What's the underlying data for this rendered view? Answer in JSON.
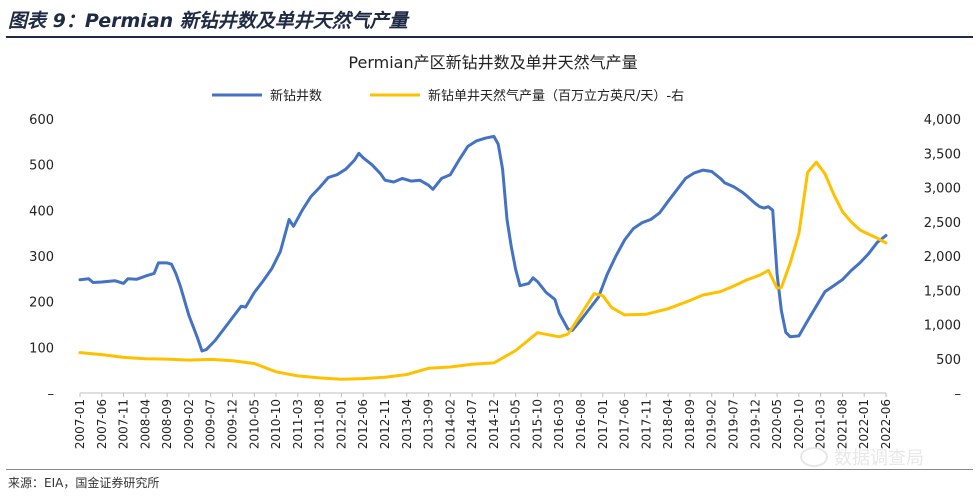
{
  "header": {
    "title": "图表 9：Permian 新钻井数及单井天然气产量"
  },
  "footer": {
    "source": "来源：EIA，国金证券研究所",
    "watermark": "数据调查局"
  },
  "chart_data": {
    "type": "line",
    "title": "Permian产区新钻井数及单井天然气产量",
    "legend_position": "top",
    "grid": false,
    "y_left": {
      "ylim": [
        0,
        600
      ],
      "ticks": [
        "–",
        "100",
        "200",
        "300",
        "400",
        "500",
        "600"
      ]
    },
    "y_right": {
      "ylim": [
        0,
        4000
      ],
      "ticks": [
        "–",
        "500",
        "1,000",
        "1,500",
        "2,000",
        "2,500",
        "3,000",
        "3,500",
        "4,000"
      ]
    },
    "x_ticks": [
      "2007-01",
      "2007-06",
      "2007-11",
      "2008-04",
      "2008-09",
      "2009-02",
      "2009-07",
      "2009-12",
      "2010-05",
      "2010-10",
      "2011-03",
      "2011-08",
      "2012-01",
      "2012-06",
      "2012-11",
      "2013-04",
      "2013-09",
      "2014-02",
      "2014-07",
      "2014-12",
      "2015-05",
      "2015-10",
      "2016-03",
      "2016-08",
      "2017-01",
      "2017-06",
      "2017-11",
      "2018-04",
      "2018-09",
      "2019-02",
      "2019-07",
      "2019-12",
      "2020-05",
      "2020-10",
      "2021-03",
      "2021-08",
      "2022-01",
      "2022-06"
    ],
    "x_range": [
      "2007-01",
      "2022-06"
    ],
    "series": [
      {
        "name": "新钻井数",
        "axis": "left",
        "color": "#4472c4",
        "points": [
          [
            "2007-01",
            248
          ],
          [
            "2007-03",
            250
          ],
          [
            "2007-04",
            242
          ],
          [
            "2007-06",
            243
          ],
          [
            "2007-09",
            246
          ],
          [
            "2007-11",
            240
          ],
          [
            "2007-12",
            250
          ],
          [
            "2008-02",
            249
          ],
          [
            "2008-04",
            256
          ],
          [
            "2008-06",
            262
          ],
          [
            "2008-07",
            285
          ],
          [
            "2008-09",
            285
          ],
          [
            "2008-10",
            282
          ],
          [
            "2008-11",
            262
          ],
          [
            "2008-12",
            235
          ],
          [
            "2009-02",
            170
          ],
          [
            "2009-04",
            120
          ],
          [
            "2009-05",
            92
          ],
          [
            "2009-06",
            95
          ],
          [
            "2009-08",
            115
          ],
          [
            "2009-10",
            140
          ],
          [
            "2009-12",
            165
          ],
          [
            "2010-02",
            190
          ],
          [
            "2010-03",
            188
          ],
          [
            "2010-05",
            220
          ],
          [
            "2010-07",
            245
          ],
          [
            "2010-09",
            272
          ],
          [
            "2010-11",
            310
          ],
          [
            "2011-01",
            380
          ],
          [
            "2011-02",
            365
          ],
          [
            "2011-04",
            400
          ],
          [
            "2011-06",
            430
          ],
          [
            "2011-08",
            450
          ],
          [
            "2011-10",
            472
          ],
          [
            "2011-12",
            478
          ],
          [
            "2012-02",
            490
          ],
          [
            "2012-04",
            510
          ],
          [
            "2012-05",
            525
          ],
          [
            "2012-06",
            515
          ],
          [
            "2012-08",
            500
          ],
          [
            "2012-10",
            480
          ],
          [
            "2012-11",
            466
          ],
          [
            "2013-01",
            462
          ],
          [
            "2013-03",
            470
          ],
          [
            "2013-05",
            464
          ],
          [
            "2013-07",
            466
          ],
          [
            "2013-09",
            455
          ],
          [
            "2013-10",
            446
          ],
          [
            "2013-12",
            470
          ],
          [
            "2014-02",
            478
          ],
          [
            "2014-04",
            510
          ],
          [
            "2014-06",
            540
          ],
          [
            "2014-08",
            552
          ],
          [
            "2014-10",
            558
          ],
          [
            "2014-12",
            562
          ],
          [
            "2015-01",
            545
          ],
          [
            "2015-02",
            490
          ],
          [
            "2015-03",
            380
          ],
          [
            "2015-04",
            320
          ],
          [
            "2015-05",
            270
          ],
          [
            "2015-06",
            235
          ],
          [
            "2015-08",
            240
          ],
          [
            "2015-09",
            252
          ],
          [
            "2015-10",
            244
          ],
          [
            "2015-12",
            220
          ],
          [
            "2016-02",
            205
          ],
          [
            "2016-03",
            175
          ],
          [
            "2016-05",
            140
          ],
          [
            "2016-06",
            137
          ],
          [
            "2016-08",
            160
          ],
          [
            "2016-10",
            185
          ],
          [
            "2016-12",
            210
          ],
          [
            "2017-02",
            260
          ],
          [
            "2017-04",
            300
          ],
          [
            "2017-06",
            335
          ],
          [
            "2017-08",
            360
          ],
          [
            "2017-10",
            373
          ],
          [
            "2017-12",
            380
          ],
          [
            "2018-02",
            394
          ],
          [
            "2018-04",
            420
          ],
          [
            "2018-06",
            445
          ],
          [
            "2018-08",
            470
          ],
          [
            "2018-10",
            482
          ],
          [
            "2018-12",
            488
          ],
          [
            "2019-02",
            485
          ],
          [
            "2019-04",
            470
          ],
          [
            "2019-05",
            460
          ],
          [
            "2019-07",
            452
          ],
          [
            "2019-09",
            440
          ],
          [
            "2019-10",
            432
          ],
          [
            "2019-12",
            415
          ],
          [
            "2020-01",
            408
          ],
          [
            "2020-02",
            405
          ],
          [
            "2020-03",
            408
          ],
          [
            "2020-04",
            400
          ],
          [
            "2020-05",
            260
          ],
          [
            "2020-06",
            180
          ],
          [
            "2020-07",
            133
          ],
          [
            "2020-08",
            123
          ],
          [
            "2020-10",
            125
          ],
          [
            "2020-12",
            158
          ],
          [
            "2021-02",
            190
          ],
          [
            "2021-04",
            222
          ],
          [
            "2021-06",
            235
          ],
          [
            "2021-08",
            248
          ],
          [
            "2021-10",
            268
          ],
          [
            "2021-12",
            285
          ],
          [
            "2022-02",
            305
          ],
          [
            "2022-04",
            330
          ],
          [
            "2022-06",
            345
          ]
        ]
      },
      {
        "name": "新钻单井天然气产量（百万立方英尺/天）-右",
        "axis": "right",
        "color": "#ffc000",
        "points": [
          [
            "2007-01",
            590
          ],
          [
            "2007-06",
            560
          ],
          [
            "2007-11",
            520
          ],
          [
            "2008-04",
            500
          ],
          [
            "2008-09",
            495
          ],
          [
            "2009-02",
            480
          ],
          [
            "2009-07",
            490
          ],
          [
            "2009-12",
            470
          ],
          [
            "2010-05",
            430
          ],
          [
            "2010-10",
            310
          ],
          [
            "2011-03",
            250
          ],
          [
            "2011-08",
            220
          ],
          [
            "2012-01",
            200
          ],
          [
            "2012-06",
            210
          ],
          [
            "2012-11",
            230
          ],
          [
            "2013-04",
            270
          ],
          [
            "2013-09",
            360
          ],
          [
            "2014-02",
            380
          ],
          [
            "2014-07",
            420
          ],
          [
            "2014-12",
            440
          ],
          [
            "2015-05",
            620
          ],
          [
            "2015-10",
            880
          ],
          [
            "2016-03",
            820
          ],
          [
            "2016-05",
            860
          ],
          [
            "2016-08",
            1150
          ],
          [
            "2016-11",
            1450
          ],
          [
            "2017-01",
            1420
          ],
          [
            "2017-03",
            1250
          ],
          [
            "2017-06",
            1140
          ],
          [
            "2017-11",
            1150
          ],
          [
            "2018-04",
            1230
          ],
          [
            "2018-09",
            1350
          ],
          [
            "2018-12",
            1430
          ],
          [
            "2019-04",
            1480
          ],
          [
            "2019-07",
            1560
          ],
          [
            "2019-10",
            1650
          ],
          [
            "2020-01",
            1720
          ],
          [
            "2020-03",
            1790
          ],
          [
            "2020-05",
            1530
          ],
          [
            "2020-06",
            1540
          ],
          [
            "2020-08",
            1900
          ],
          [
            "2020-10",
            2330
          ],
          [
            "2020-12",
            3220
          ],
          [
            "2021-02",
            3370
          ],
          [
            "2021-04",
            3200
          ],
          [
            "2021-06",
            2900
          ],
          [
            "2021-08",
            2650
          ],
          [
            "2021-10",
            2500
          ],
          [
            "2021-12",
            2380
          ],
          [
            "2022-02",
            2320
          ],
          [
            "2022-04",
            2260
          ],
          [
            "2022-06",
            2190
          ]
        ]
      }
    ]
  }
}
